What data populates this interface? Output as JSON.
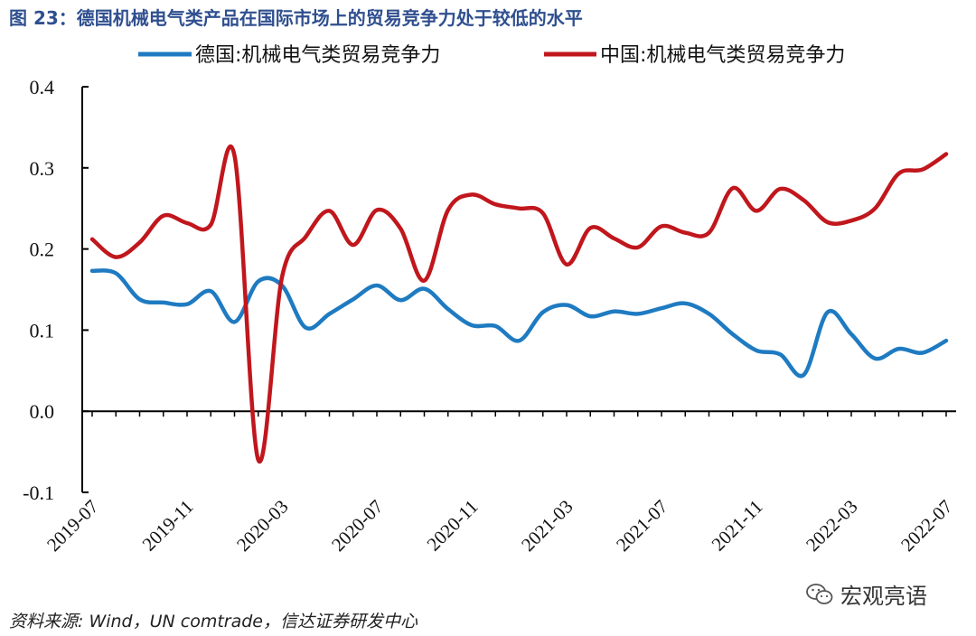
{
  "figure": {
    "label": "图 23：",
    "title": "德国机械电气类产品在国际市场上的贸易竞争力处于较低的水平",
    "source": "资料来源: Wind，UN comtrade，信达证券研发中心",
    "watermark": "宏观亮语",
    "watermark_icon": "wechat-icon"
  },
  "chart_data": {
    "type": "line",
    "title": "德国机械电气类产品在国际市场上的贸易竞争力处于较低的水平",
    "ylim": [
      -0.1,
      0.4
    ],
    "yticks": [
      "0.4",
      "0.3",
      "0.2",
      "0.1",
      "0.0",
      "-0.1"
    ],
    "ytick_values": [
      0.4,
      0.3,
      0.2,
      0.1,
      0.0,
      -0.1
    ],
    "xtick_labels": [
      "2019-07",
      "2019-11",
      "2020-03",
      "2020-07",
      "2020-11",
      "2021-03",
      "2021-07",
      "2021-11",
      "2022-03",
      "2022-07"
    ],
    "x": [
      "2019-07",
      "2019-08",
      "2019-09",
      "2019-10",
      "2019-11",
      "2019-12",
      "2020-01",
      "2020-02",
      "2020-03",
      "2020-04",
      "2020-05",
      "2020-06",
      "2020-07",
      "2020-08",
      "2020-09",
      "2020-10",
      "2020-11",
      "2020-12",
      "2021-01",
      "2021-02",
      "2021-03",
      "2021-04",
      "2021-05",
      "2021-06",
      "2021-07",
      "2021-08",
      "2021-09",
      "2021-10",
      "2021-11",
      "2021-12",
      "2022-01",
      "2022-02",
      "2022-03",
      "2022-04",
      "2022-05",
      "2022-06",
      "2022-07"
    ],
    "grid": false,
    "legend_position": "top",
    "series": [
      {
        "name": "德国:机械电气类贸易竞争力",
        "color": "#1f7bc1",
        "values": [
          0.173,
          0.17,
          0.138,
          0.134,
          0.132,
          0.148,
          0.11,
          0.16,
          0.155,
          0.103,
          0.12,
          0.138,
          0.155,
          0.137,
          0.151,
          0.126,
          0.106,
          0.105,
          0.087,
          0.122,
          0.131,
          0.117,
          0.123,
          0.12,
          0.127,
          0.133,
          0.12,
          0.095,
          0.075,
          0.07,
          0.045,
          0.122,
          0.095,
          0.065,
          0.077,
          0.072,
          0.087
        ]
      },
      {
        "name": "中国:机械电气类贸易竞争力",
        "color": "#c0171d",
        "values": [
          0.212,
          0.19,
          0.208,
          0.241,
          0.232,
          0.23,
          0.315,
          -0.06,
          0.165,
          0.215,
          0.247,
          0.205,
          0.248,
          0.225,
          0.161,
          0.248,
          0.267,
          0.255,
          0.25,
          0.244,
          0.181,
          0.226,
          0.213,
          0.202,
          0.228,
          0.22,
          0.22,
          0.275,
          0.247,
          0.274,
          0.26,
          0.233,
          0.235,
          0.25,
          0.293,
          0.298,
          0.317
        ]
      }
    ]
  }
}
